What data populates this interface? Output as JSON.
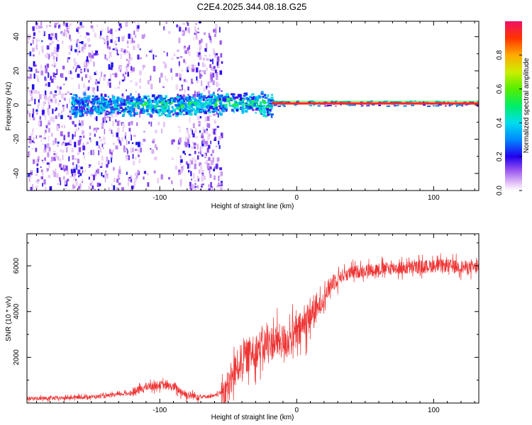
{
  "title": "C2E4.2025.344.08.18.G25",
  "colors": {
    "series": "#ee3333",
    "axis": "#000000",
    "background": "#ffffff"
  },
  "chart_data": [
    {
      "type": "heatmap",
      "xlabel": "Height of straight line (km)",
      "ylabel": "Frequency (Hz)",
      "xlim": [
        -197,
        133
      ],
      "ylim": [
        -50,
        49
      ],
      "x_ticks": [
        -100,
        0,
        100
      ],
      "x_tick_labels": [
        "-100",
        "0",
        "100"
      ],
      "y_ticks": [
        -40,
        -20,
        0,
        20,
        40
      ],
      "y_tick_labels": [
        "-40",
        "-20",
        "0",
        "20",
        "40"
      ],
      "colorbar": {
        "label": "Normalized spectral amplitude",
        "range": [
          0,
          1
        ],
        "ticks": [
          0.0,
          0.2,
          0.4,
          0.6,
          0.8
        ],
        "tick_labels": [
          "0.0",
          "0.2",
          "0.4",
          "0.6",
          "0.8"
        ]
      },
      "description_of_data": [
        {
          "x_range": [
            -197,
            -60
          ],
          "freq_range": [
            -50,
            49
          ],
          "amplitude": "scattered 0.05-0.2"
        },
        {
          "x_range": [
            -160,
            -20
          ],
          "freq_center": 0,
          "freq_halfwidth": 6,
          "amplitude": "0.2-0.5"
        },
        {
          "x_range": [
            -20,
            133
          ],
          "freq_center": 0,
          "freq_halfwidth": 1,
          "amplitude": "0.9-1.0"
        }
      ]
    },
    {
      "type": "line",
      "xlabel": "Height of straight line (km)",
      "ylabel": "SNR (10 * v/v)",
      "xlim": [
        -197,
        133
      ],
      "ylim": [
        0,
        7400
      ],
      "x_ticks": [
        -100,
        0,
        100
      ],
      "x_tick_labels": [
        "-100",
        "0",
        "100"
      ],
      "y_ticks": [
        2000,
        4000,
        6000
      ],
      "y_tick_labels": [
        "2000",
        "4000",
        "6000"
      ],
      "series": [
        {
          "name": "SNR",
          "color": "#ee3333",
          "x": [
            -197,
            -180,
            -160,
            -140,
            -120,
            -110,
            -100,
            -90,
            -80,
            -70,
            -60,
            -50,
            -45,
            -40,
            -35,
            -30,
            -25,
            -20,
            -15,
            -10,
            -5,
            0,
            5,
            10,
            15,
            20,
            25,
            30,
            40,
            50,
            60,
            70,
            80,
            90,
            100,
            110,
            120,
            133
          ],
          "y": [
            200,
            200,
            250,
            300,
            450,
            700,
            800,
            700,
            350,
            280,
            300,
            650,
            1400,
            1900,
            2100,
            2300,
            2500,
            2600,
            2700,
            2700,
            2800,
            3000,
            3400,
            3900,
            4100,
            4600,
            5200,
            5500,
            5700,
            5800,
            5850,
            5900,
            5900,
            5950,
            6000,
            6000,
            5950,
            5900
          ]
        }
      ]
    }
  ]
}
